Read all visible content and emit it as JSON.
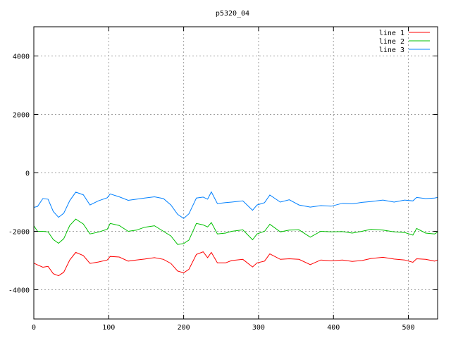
{
  "chart_data": {
    "type": "line",
    "title": "p5320_04",
    "xlabel": "",
    "ylabel": "",
    "xlim": [
      0,
      539
    ],
    "ylim": [
      -5000,
      5000
    ],
    "xticks": [
      0,
      100,
      200,
      300,
      400,
      500
    ],
    "yticks": [
      -4000,
      -2000,
      0,
      2000,
      4000
    ],
    "grid": true,
    "legend_position": "top-right",
    "series": [
      {
        "name": "line 1",
        "color": "#ff0000",
        "x": [
          0,
          5,
          12,
          19,
          26,
          33,
          40,
          48,
          56,
          66,
          75,
          86,
          98,
          102,
          114,
          126,
          137,
          148,
          161,
          173,
          183,
          192,
          200,
          207,
          217,
          226,
          232,
          237,
          245,
          256,
          264,
          279,
          292,
          298,
          308,
          315,
          329,
          341,
          354,
          369,
          383,
          397,
          412,
          425,
          438,
          450,
          466,
          481,
          495,
          506,
          511,
          523,
          535,
          539
        ],
        "values": [
          -3090,
          -3150,
          -3230,
          -3200,
          -3450,
          -3520,
          -3400,
          -2980,
          -2720,
          -2830,
          -3100,
          -3050,
          -2980,
          -2860,
          -2880,
          -3020,
          -2980,
          -2950,
          -2900,
          -2960,
          -3100,
          -3360,
          -3420,
          -3300,
          -2790,
          -2700,
          -2900,
          -2720,
          -3080,
          -3080,
          -3000,
          -2960,
          -3220,
          -3080,
          -3020,
          -2770,
          -2960,
          -2940,
          -2960,
          -3140,
          -2980,
          -3010,
          -2980,
          -3030,
          -3000,
          -2930,
          -2890,
          -2950,
          -2980,
          -3060,
          -2940,
          -2960,
          -3020,
          -2980
        ]
      },
      {
        "name": "line 2",
        "color": "#00c000",
        "x": [
          0,
          5,
          12,
          19,
          26,
          33,
          40,
          48,
          56,
          66,
          75,
          86,
          98,
          102,
          114,
          126,
          137,
          148,
          161,
          173,
          183,
          192,
          200,
          207,
          217,
          226,
          232,
          237,
          245,
          256,
          264,
          279,
          292,
          298,
          308,
          315,
          329,
          341,
          354,
          369,
          383,
          397,
          412,
          425,
          438,
          450,
          466,
          481,
          495,
          506,
          511,
          523,
          535,
          539
        ],
        "values": [
          -1810,
          -2000,
          -2000,
          -2020,
          -2280,
          -2410,
          -2250,
          -1800,
          -1580,
          -1750,
          -2090,
          -2030,
          -1930,
          -1730,
          -1800,
          -2000,
          -1960,
          -1860,
          -1810,
          -2000,
          -2160,
          -2450,
          -2420,
          -2300,
          -1730,
          -1780,
          -1850,
          -1700,
          -2090,
          -2060,
          -2000,
          -1950,
          -2290,
          -2090,
          -2000,
          -1760,
          -2020,
          -1960,
          -1950,
          -2200,
          -2000,
          -2020,
          -2010,
          -2060,
          -2000,
          -1930,
          -1960,
          -2020,
          -2040,
          -2130,
          -1900,
          -2060,
          -2090,
          -2030
        ]
      },
      {
        "name": "line 3",
        "color": "#0080ff",
        "x": [
          0,
          5,
          12,
          19,
          26,
          33,
          40,
          48,
          56,
          66,
          75,
          86,
          98,
          102,
          114,
          126,
          137,
          148,
          161,
          173,
          183,
          192,
          200,
          207,
          217,
          226,
          232,
          237,
          245,
          256,
          264,
          279,
          292,
          298,
          308,
          315,
          329,
          341,
          354,
          369,
          383,
          397,
          412,
          425,
          438,
          450,
          466,
          481,
          495,
          506,
          511,
          523,
          535,
          539
        ],
        "values": [
          -1180,
          -1150,
          -880,
          -900,
          -1320,
          -1520,
          -1380,
          -950,
          -660,
          -750,
          -1100,
          -960,
          -850,
          -720,
          -820,
          -940,
          -900,
          -860,
          -820,
          -880,
          -1100,
          -1420,
          -1560,
          -1400,
          -860,
          -830,
          -900,
          -650,
          -1050,
          -1020,
          -1000,
          -960,
          -1280,
          -1100,
          -1020,
          -760,
          -1000,
          -920,
          -1100,
          -1170,
          -1120,
          -1140,
          -1040,
          -1060,
          -1010,
          -980,
          -930,
          -1000,
          -930,
          -960,
          -840,
          -880,
          -860,
          -840
        ]
      }
    ]
  }
}
